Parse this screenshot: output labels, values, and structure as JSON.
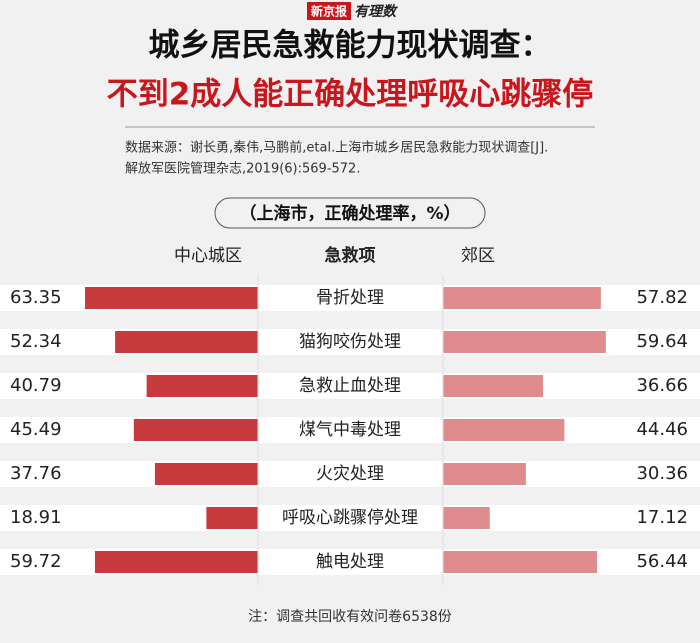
{
  "chart_data": {
    "type": "butterfly",
    "brand": [
      "新京报",
      "有理数"
    ],
    "title": "城乡居民急救能力现状调查：",
    "subtitle": "不到2成人能正确处理呼吸心跳骤停",
    "source": [
      "数据来源：谢长勇,秦伟,马鹏前,etal.上海市城乡居民急救能力现状调查[J].",
      "解放军医院管理杂志,2019(6):569-572."
    ],
    "unit_label": "（上海市，正确处理率，%）",
    "category_header": "急救项",
    "categories": [
      "骨折处理",
      "猫狗咬伤处理",
      "急救止血处理",
      "煤气中毒处理",
      "火灾处理",
      "呼吸心跳骤停处理",
      "触电处理"
    ],
    "series": [
      {
        "name": "中心城区",
        "color": "#c73a3d",
        "values": [
          63.35,
          52.34,
          40.79,
          45.49,
          37.76,
          18.91,
          59.72
        ]
      },
      {
        "name": "郊区",
        "color": "#e08b8d",
        "values": [
          57.82,
          59.64,
          36.66,
          44.46,
          30.36,
          17.12,
          56.44
        ]
      }
    ],
    "note": "注：调查共回收有效问卷6538份"
  }
}
